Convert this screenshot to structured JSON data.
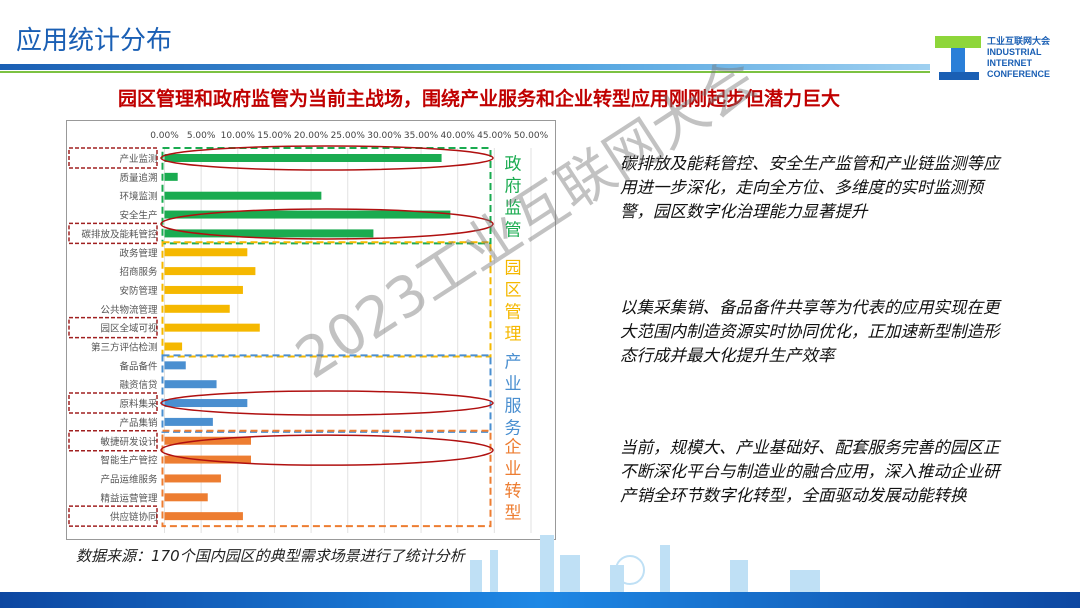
{
  "header": {
    "title": "应用统计分布",
    "headline": "园区管理和政府监管为当前主战场，围绕产业服务和企业转型应用刚刚起步但潜力巨大"
  },
  "logo": {
    "cn": "工业互联网大会",
    "en1": "INDUSTRIAL",
    "en2": "INTERNET",
    "en3": "CONFERENCE"
  },
  "watermark": "2023工业互联网大会",
  "source": "数据来源：170个国内园区的典型需求场景进行了统计分析",
  "side_texts": [
    "碳排放及能耗管控、安全生产监管和产业链监测等应用进一步深化，走向全方位、多维度的实时监测预警，园区数字化治理能力显著提升",
    "以集采集销、备品备件共享等为代表的应用实现在更大范围内制造资源实时协同优化，正加速新型制造形态行成并最大化提升生产效率",
    "当前，规模大、产业基础好、配套服务完善的园区正不断深化平台与制造业的融合应用，深入推动企业研产销全环节数字化转型，全面驱动发展动能转换"
  ],
  "colors": {
    "gov": "#1aab50",
    "park": "#f5b800",
    "industry": "#4a8fd0",
    "enterprise": "#ed7d31",
    "highlight": "#c00000",
    "title": "#1a5fb4"
  },
  "chart_data": {
    "type": "bar",
    "orientation": "horizontal",
    "xlim": [
      0,
      50
    ],
    "xticks": [
      "0.00%",
      "5.00%",
      "10.00%",
      "15.00%",
      "20.00%",
      "25.00%",
      "30.00%",
      "35.00%",
      "40.00%",
      "45.00%",
      "50.00%"
    ],
    "xaxis_position": "top",
    "grid": true,
    "groups": [
      {
        "name": "政府监管",
        "color": "#1aab50",
        "categories": [
          "产业监测",
          "质量追溯",
          "环境监测",
          "安全生产",
          "碳排放及能耗管控"
        ],
        "values": [
          37.8,
          1.8,
          21.4,
          39.0,
          28.5
        ]
      },
      {
        "name": "园区管理",
        "color": "#f5b800",
        "categories": [
          "政务管理",
          "招商服务",
          "安防管理",
          "公共物流管理",
          "园区全域可视",
          "第三方评估检测"
        ],
        "values": [
          11.3,
          12.4,
          10.7,
          8.9,
          13.0,
          2.4
        ]
      },
      {
        "name": "产业服务",
        "color": "#4a8fd0",
        "categories": [
          "备品备件",
          "融资信贷",
          "原料集采",
          "产品集销"
        ],
        "values": [
          2.9,
          7.1,
          11.3,
          6.6
        ]
      },
      {
        "name": "企业转型",
        "color": "#ed7d31",
        "categories": [
          "敏捷研发设计",
          "智能生产管控",
          "产品运维服务",
          "精益运营管理",
          "供应链协同"
        ],
        "values": [
          11.8,
          11.8,
          7.7,
          5.9,
          10.7
        ]
      }
    ],
    "highlighted_labels": [
      "产业监测",
      "碳排放及能耗管控",
      "园区全域可视",
      "原料集采",
      "敏捷研发设计",
      "供应链协同"
    ],
    "circled_bars": [
      [
        "产业监测"
      ],
      [
        "安全生产",
        "碳排放及能耗管控"
      ],
      [
        "原料集采"
      ],
      [
        "敏捷研发设计",
        "智能生产管控"
      ]
    ]
  }
}
